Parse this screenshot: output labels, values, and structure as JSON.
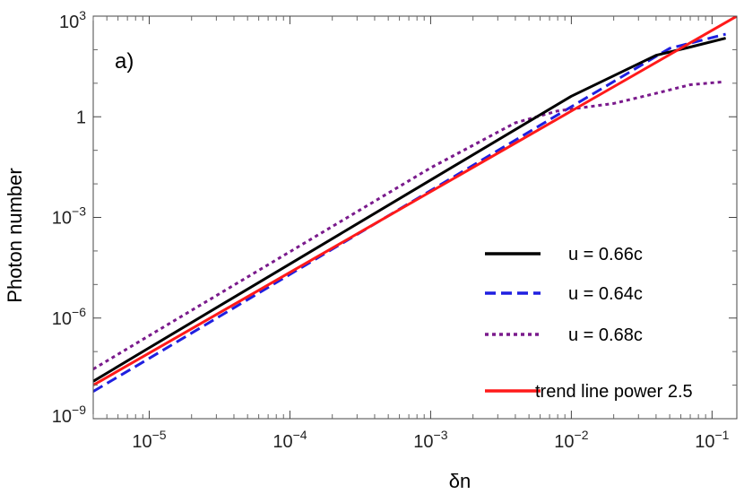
{
  "chart_data": {
    "type": "line",
    "panel_label": "a)",
    "xlabel": "δn",
    "ylabel": "Photon number",
    "x_scale": "log",
    "y_scale": "log",
    "xlim": [
      4e-06,
      0.15
    ],
    "ylim": [
      1e-09,
      1000
    ],
    "x_ticks": [
      {
        "value": 1e-05,
        "base": "10",
        "exp": "−5"
      },
      {
        "value": 0.0001,
        "base": "10",
        "exp": "−4"
      },
      {
        "value": 0.001,
        "base": "10",
        "exp": "−3"
      },
      {
        "value": 0.01,
        "base": "10",
        "exp": "−2"
      },
      {
        "value": 0.1,
        "base": "10",
        "exp": "−1"
      }
    ],
    "y_ticks": [
      {
        "value": 1e-09,
        "base": "10",
        "exp": "−9"
      },
      {
        "value": 1e-06,
        "base": "10",
        "exp": "−6"
      },
      {
        "value": 0.001,
        "base": "10",
        "exp": "−3"
      },
      {
        "value": 1,
        "base": "1",
        "exp": ""
      },
      {
        "value": 1000,
        "base": "10",
        "exp": "3"
      }
    ],
    "legend_position": "lower-right",
    "series": [
      {
        "name": "u = 0.66c",
        "color": "#000000",
        "style": "solid",
        "x": [
          4e-06,
          1e-05,
          0.0001,
          0.001,
          0.01,
          0.04,
          0.07,
          0.125
        ],
        "y": [
          1.3e-08,
          1.3e-07,
          4.1e-05,
          0.013,
          4.1,
          68,
          120,
          220
        ]
      },
      {
        "name": "u = 0.64c",
        "color": "#1f1fe0",
        "style": "dashed",
        "x": [
          4e-06,
          1e-05,
          0.0001,
          0.001,
          0.01,
          0.05,
          0.125
        ],
        "y": [
          6.5e-09,
          6.3e-08,
          2e-05,
          0.0063,
          2.0,
          110,
          290
        ]
      },
      {
        "name": "u = 0.68c",
        "color": "#7a1a8c",
        "style": "dotted",
        "x": [
          4e-06,
          1e-05,
          0.0001,
          0.001,
          0.004,
          0.008,
          0.01,
          0.02,
          0.04,
          0.07,
          0.12
        ],
        "y": [
          3e-08,
          3e-07,
          9.5e-05,
          0.03,
          0.66,
          1.5,
          1.7,
          2.5,
          5.0,
          9.0,
          11
        ]
      },
      {
        "name": "trend line power 2.5",
        "color": "#ff1a1a",
        "style": "solid",
        "x": [
          4e-06,
          0.15
        ],
        "y": [
          1e-08,
          1000
        ]
      }
    ]
  }
}
